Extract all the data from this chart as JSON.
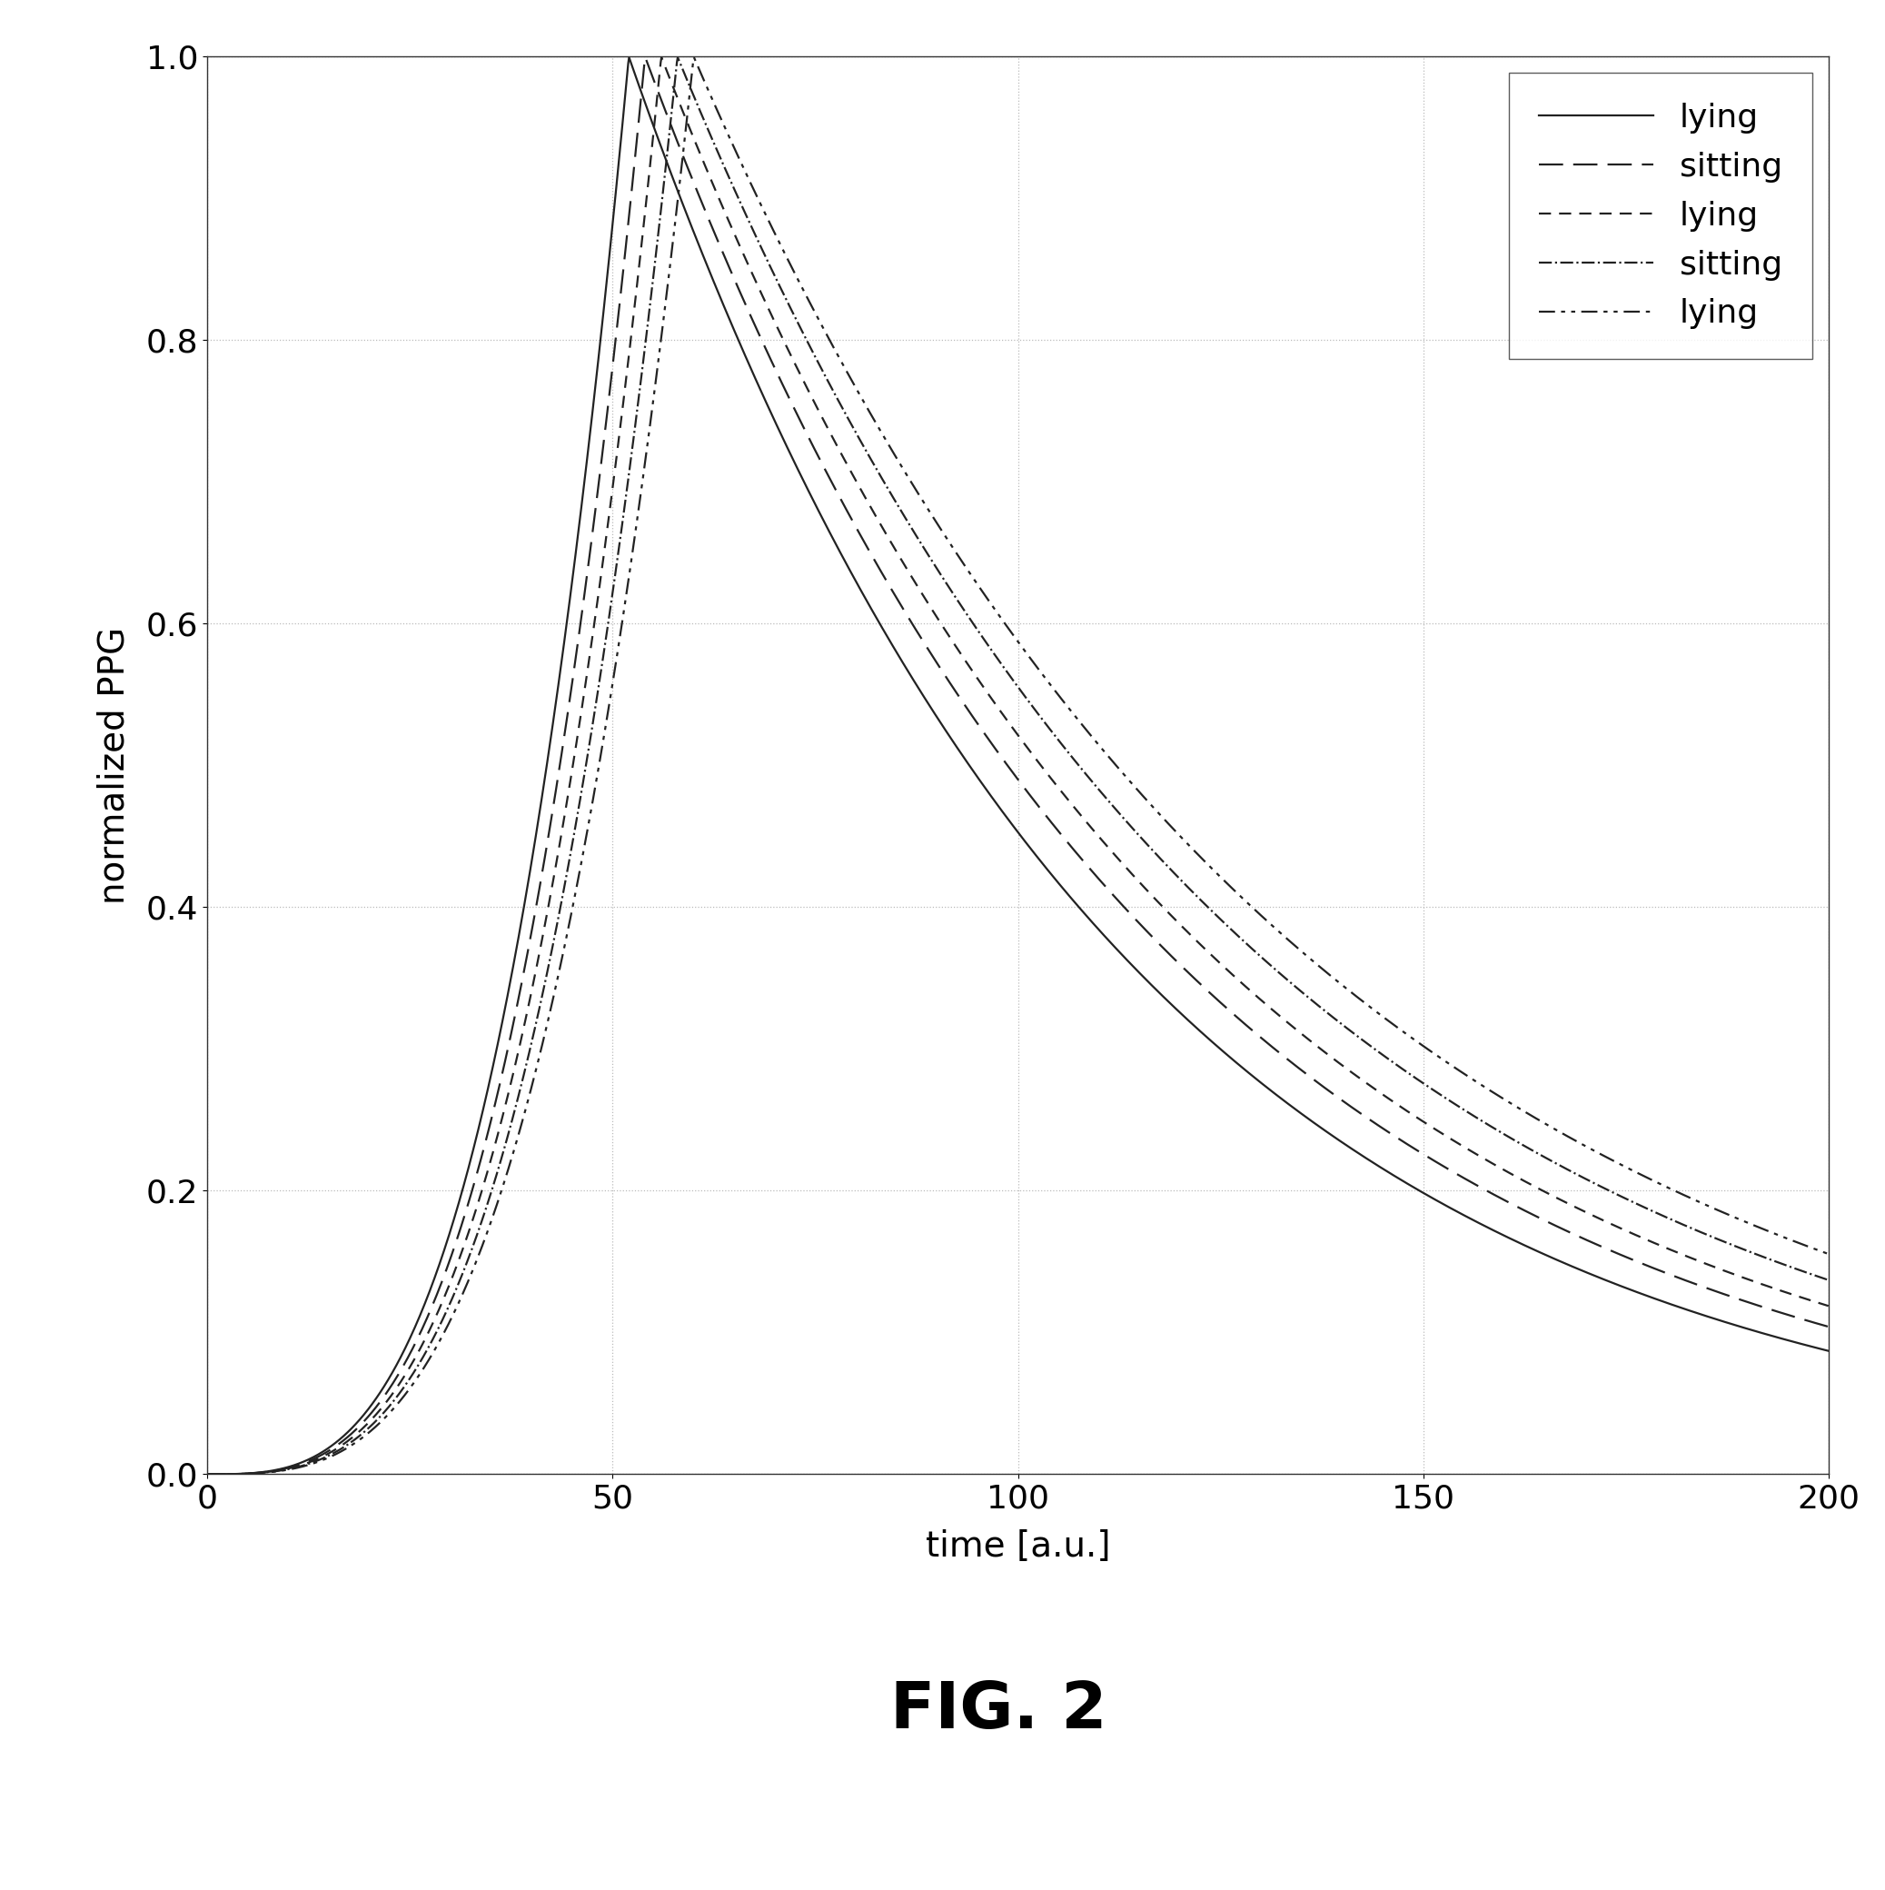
{
  "title": "FIG. 2",
  "xlabel": "time [a.u.]",
  "ylabel": "normalized PPG",
  "xlim": [
    0,
    200
  ],
  "ylim": [
    0.0,
    1.0
  ],
  "xticks": [
    0,
    50,
    100,
    150,
    200
  ],
  "yticks": [
    0.0,
    0.2,
    0.4,
    0.6,
    0.8,
    1.0
  ],
  "background_color": "#ffffff",
  "grid_color": "#bbbbbb",
  "line_color": "#222222",
  "legend_entries": [
    {
      "label": "lying",
      "ls": "solid"
    },
    {
      "label": "sitting",
      "ls": "dashed_long"
    },
    {
      "label": "lying",
      "ls": "dashed_med"
    },
    {
      "label": "sitting",
      "ls": "dashdot"
    },
    {
      "label": "lying",
      "ls": "dashdotdot"
    }
  ],
  "curve_params": [
    {
      "peak": 52,
      "fall_rate": 0.0165,
      "rise_power": 3.2
    },
    {
      "peak": 54,
      "fall_rate": 0.0155,
      "rise_power": 3.2
    },
    {
      "peak": 56,
      "fall_rate": 0.0148,
      "rise_power": 3.2
    },
    {
      "peak": 58,
      "fall_rate": 0.014,
      "rise_power": 3.2
    },
    {
      "peak": 60,
      "fall_rate": 0.0133,
      "rise_power": 3.2
    }
  ],
  "linewidth": 1.6,
  "title_fontsize": 52,
  "axis_label_fontsize": 28,
  "tick_fontsize": 26,
  "legend_fontsize": 26
}
